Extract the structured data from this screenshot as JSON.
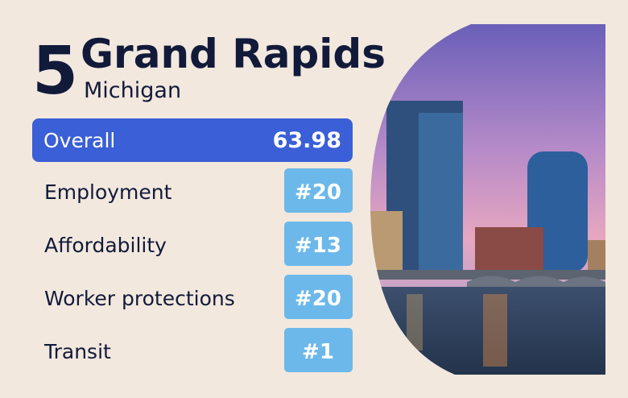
{
  "rank": "5",
  "title": "Grand Rapids",
  "subtitle": "Michigan",
  "overall": {
    "label": "Overall",
    "value": "63.98"
  },
  "rows": [
    {
      "label": "Employment",
      "value": "#20"
    },
    {
      "label": "Affordability",
      "value": "#13"
    },
    {
      "label": "Worker protections",
      "value": "#20"
    },
    {
      "label": "Transit",
      "value": "#1"
    }
  ]
}
